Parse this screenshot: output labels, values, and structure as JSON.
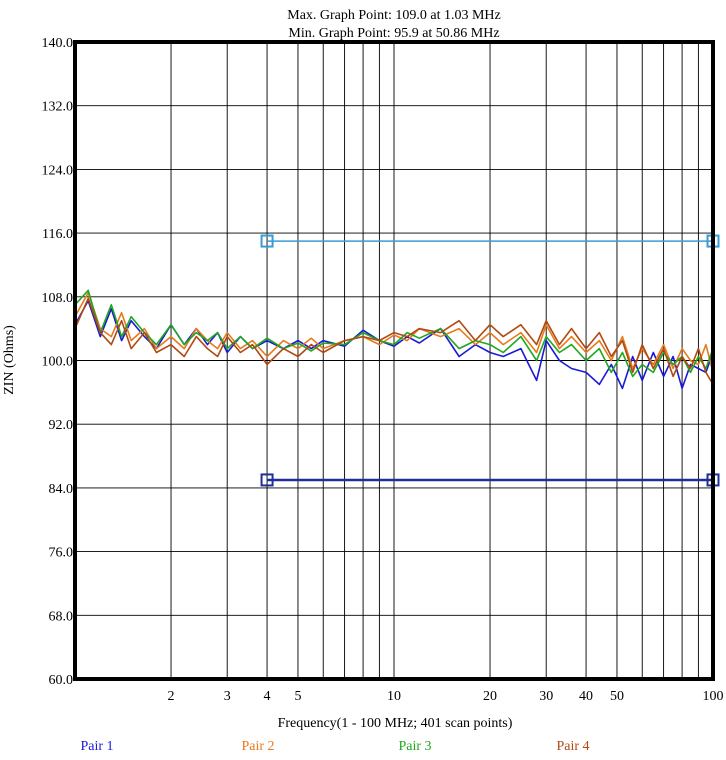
{
  "chart_data": {
    "type": "line",
    "header": {
      "max_line": "Max. Graph Point: 109.0 at 1.03 MHz",
      "min_line": "Min. Graph Point: 95.9 at 50.86 MHz"
    },
    "xlabel": "Frequency(1 - 100 MHz; 401 scan points)",
    "ylabel": "ZIN (Ohms)",
    "x_scale": "log",
    "xlim": [
      1,
      100
    ],
    "ylim": [
      60,
      140
    ],
    "grid": true,
    "y_ticks": [
      {
        "value": 60,
        "label": "60.0"
      },
      {
        "value": 68,
        "label": "68.0"
      },
      {
        "value": 76,
        "label": "76.0"
      },
      {
        "value": 84,
        "label": "84.0"
      },
      {
        "value": 92,
        "label": "92.0"
      },
      {
        "value": 100,
        "label": "100.0"
      },
      {
        "value": 108,
        "label": "108.0"
      },
      {
        "value": 116,
        "label": "116.0"
      },
      {
        "value": 124,
        "label": "124.0"
      },
      {
        "value": 132,
        "label": "132.0"
      },
      {
        "value": 140,
        "label": "140.0"
      }
    ],
    "x_ticks": [
      {
        "value": 2,
        "label": "2"
      },
      {
        "value": 3,
        "label": "3"
      },
      {
        "value": 4,
        "label": "4"
      },
      {
        "value": 5,
        "label": "5"
      },
      {
        "value": 10,
        "label": "10"
      },
      {
        "value": 20,
        "label": "20"
      },
      {
        "value": 30,
        "label": "30"
      },
      {
        "value": 40,
        "label": "40"
      },
      {
        "value": 50,
        "label": "50"
      },
      {
        "value": 100,
        "label": "100"
      }
    ],
    "limit_lines": [
      {
        "x": [
          4,
          100
        ],
        "y": 115,
        "color": "#3a9bd5"
      },
      {
        "x": [
          4,
          100
        ],
        "y": 85,
        "color": "#1f2f9a"
      }
    ],
    "series": [
      {
        "name": "Pair 1",
        "color": "#1a1ad8",
        "x": [
          1,
          1.1,
          1.2,
          1.3,
          1.4,
          1.5,
          1.65,
          1.8,
          2,
          2.2,
          2.4,
          2.6,
          2.8,
          3,
          3.3,
          3.6,
          4,
          4.5,
          5,
          5.5,
          6,
          7,
          8,
          9,
          10,
          11,
          12,
          14,
          16,
          18,
          20,
          22,
          25,
          28,
          30,
          33,
          36,
          40,
          44,
          48,
          52,
          56,
          60,
          65,
          70,
          75,
          80,
          85,
          90,
          95,
          100
        ],
        "y": [
          104.5,
          107.5,
          103,
          106.5,
          102.5,
          105,
          103,
          101.5,
          104.5,
          102,
          104,
          102,
          103.5,
          101,
          103,
          101.5,
          102.5,
          101.5,
          102.5,
          101.5,
          102.5,
          101.8,
          103.8,
          102.5,
          101.8,
          103,
          102.2,
          104,
          100.5,
          102,
          101,
          100.5,
          101.5,
          97.5,
          102.5,
          100,
          99,
          98.5,
          97,
          99.5,
          96.5,
          100.5,
          97.5,
          101,
          98,
          100.5,
          96.5,
          99.5,
          99,
          98.5,
          101
        ]
      },
      {
        "name": "Pair 2",
        "color": "#e87a1e",
        "x": [
          1,
          1.1,
          1.2,
          1.3,
          1.4,
          1.5,
          1.65,
          1.8,
          2,
          2.2,
          2.4,
          2.6,
          2.8,
          3,
          3.3,
          3.6,
          4,
          4.5,
          5,
          5.5,
          6,
          7,
          8,
          9,
          10,
          11,
          12,
          14,
          16,
          18,
          20,
          22,
          25,
          28,
          30,
          33,
          36,
          40,
          44,
          48,
          52,
          56,
          60,
          65,
          70,
          75,
          80,
          85,
          90,
          95,
          100
        ],
        "y": [
          105.5,
          108.5,
          104,
          103,
          106,
          102.5,
          104,
          101.5,
          103,
          101.5,
          104,
          102.5,
          101.5,
          103.5,
          101.5,
          102.5,
          100.5,
          102.5,
          101.5,
          102.8,
          101.5,
          102.5,
          103,
          102,
          103.2,
          102.5,
          104,
          103,
          104,
          102,
          103.5,
          102,
          103.5,
          101,
          104.5,
          101.5,
          103,
          101,
          102.5,
          100,
          103,
          99,
          101.5,
          99.5,
          102,
          99,
          101.5,
          100,
          99.5,
          102,
          98.5
        ]
      },
      {
        "name": "Pair 3",
        "color": "#1fa81f",
        "x": [
          1,
          1.1,
          1.2,
          1.3,
          1.4,
          1.5,
          1.65,
          1.8,
          2,
          2.2,
          2.4,
          2.6,
          2.8,
          3,
          3.3,
          3.6,
          4,
          4.5,
          5,
          5.5,
          6,
          7,
          8,
          9,
          10,
          11,
          12,
          14,
          16,
          18,
          20,
          22,
          25,
          28,
          30,
          33,
          36,
          40,
          44,
          48,
          52,
          56,
          60,
          65,
          70,
          75,
          80,
          85,
          90,
          95,
          100
        ],
        "y": [
          107,
          108.8,
          103.5,
          107,
          103,
          105.5,
          103.5,
          102,
          104.5,
          102,
          103.5,
          102.5,
          103.5,
          101.5,
          103,
          101.5,
          102.8,
          101.5,
          102.2,
          101.2,
          102.2,
          102,
          103.5,
          102.5,
          102,
          103.5,
          102.8,
          104,
          101.5,
          102.5,
          102,
          101,
          103,
          100,
          103,
          101,
          102,
          100,
          101.5,
          98.5,
          101,
          98,
          99.5,
          98.5,
          101,
          99.5,
          100.5,
          98.5,
          100.5,
          99,
          101.5
        ]
      },
      {
        "name": "Pair 4",
        "color": "#b04a12",
        "x": [
          1,
          1.1,
          1.2,
          1.3,
          1.4,
          1.5,
          1.65,
          1.8,
          2,
          2.2,
          2.4,
          2.6,
          2.8,
          3,
          3.3,
          3.6,
          4,
          4.5,
          5,
          5.5,
          6,
          7,
          8,
          9,
          10,
          11,
          12,
          14,
          16,
          18,
          20,
          22,
          25,
          28,
          30,
          33,
          36,
          40,
          44,
          48,
          52,
          56,
          60,
          65,
          70,
          75,
          80,
          85,
          90,
          95,
          100
        ],
        "y": [
          104,
          107.8,
          103.5,
          102,
          105,
          101.5,
          103.5,
          101,
          102,
          100.5,
          103,
          101.5,
          100.5,
          103,
          101,
          102,
          99.5,
          101.5,
          100.5,
          102,
          101,
          102.5,
          103,
          102.5,
          103.5,
          103,
          104,
          103.5,
          105,
          102.5,
          104.5,
          103,
          104.5,
          102,
          105,
          102,
          104,
          101.5,
          103.5,
          100.5,
          102.5,
          98.5,
          102,
          99,
          101.5,
          98,
          100.5,
          99,
          101.5,
          98.5,
          97
        ]
      }
    ]
  }
}
